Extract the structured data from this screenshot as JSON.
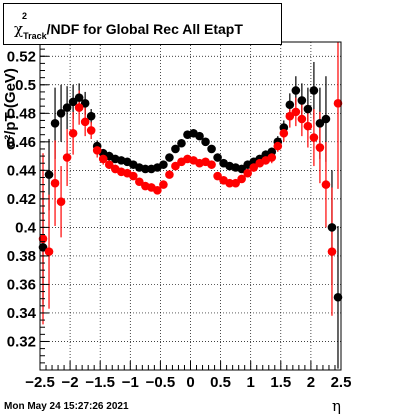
{
  "title": {
    "prefix": "χ",
    "superscript": "2",
    "subscript": "Track",
    "rest": "/NDF for Global Rec All EtapT"
  },
  "ylabel": "σ²/pT (GeV)",
  "xlabel": "η",
  "footer": "Mon May 24 15:27:26 2021",
  "colors": {
    "series_black": "#000000",
    "series_red": "#ff0000",
    "grid": "#000000"
  },
  "chart_data": {
    "type": "scatter",
    "title": "χ²Track/NDF for Global Rec All EtapT",
    "xlabel": "η",
    "ylabel": "σ²/pT (GeV)",
    "xlim": [
      -2.5,
      2.5
    ],
    "ylim": [
      0.3,
      0.53
    ],
    "grid": true,
    "x_ticks": [
      "−2.5",
      "−2",
      "−1.5",
      "−1",
      "−0.5",
      "0",
      "0.5",
      "1",
      "1.5",
      "2",
      "2.5"
    ],
    "y_ticks": [
      "0.32",
      "0.34",
      "0.36",
      "0.38",
      "0.4",
      "0.42",
      "0.44",
      "0.46",
      "0.48",
      "0.5",
      "0.52"
    ],
    "series": [
      {
        "color": "#000000",
        "points": [
          {
            "x": -2.45,
            "y": 0.386,
            "err": 0.04
          },
          {
            "x": -2.35,
            "y": 0.437,
            "err": 0.025
          },
          {
            "x": -2.25,
            "y": 0.473,
            "err": 0.025
          },
          {
            "x": -2.15,
            "y": 0.48,
            "err": 0.02
          },
          {
            "x": -2.05,
            "y": 0.484,
            "err": 0.015
          },
          {
            "x": -1.95,
            "y": 0.488,
            "err": 0.012
          },
          {
            "x": -1.85,
            "y": 0.491,
            "err": 0.01
          },
          {
            "x": -1.75,
            "y": 0.487,
            "err": 0.008
          },
          {
            "x": -1.65,
            "y": 0.478,
            "err": 0.005
          },
          {
            "x": -1.55,
            "y": 0.457,
            "err": 0.004
          },
          {
            "x": -1.45,
            "y": 0.452,
            "err": 0.003
          },
          {
            "x": -1.35,
            "y": 0.45,
            "err": 0.003
          },
          {
            "x": -1.25,
            "y": 0.448,
            "err": 0.002
          },
          {
            "x": -1.15,
            "y": 0.447,
            "err": 0.002
          },
          {
            "x": -1.05,
            "y": 0.446,
            "err": 0.002
          },
          {
            "x": -0.95,
            "y": 0.444,
            "err": 0.002
          },
          {
            "x": -0.85,
            "y": 0.442,
            "err": 0.002
          },
          {
            "x": -0.75,
            "y": 0.441,
            "err": 0.002
          },
          {
            "x": -0.65,
            "y": 0.441,
            "err": 0.002
          },
          {
            "x": -0.55,
            "y": 0.442,
            "err": 0.002
          },
          {
            "x": -0.45,
            "y": 0.444,
            "err": 0.002
          },
          {
            "x": -0.35,
            "y": 0.449,
            "err": 0.002
          },
          {
            "x": -0.25,
            "y": 0.455,
            "err": 0.002
          },
          {
            "x": -0.15,
            "y": 0.459,
            "err": 0.002
          },
          {
            "x": -0.05,
            "y": 0.465,
            "err": 0.002
          },
          {
            "x": 0.05,
            "y": 0.466,
            "err": 0.002
          },
          {
            "x": 0.15,
            "y": 0.464,
            "err": 0.002
          },
          {
            "x": 0.25,
            "y": 0.46,
            "err": 0.002
          },
          {
            "x": 0.35,
            "y": 0.455,
            "err": 0.002
          },
          {
            "x": 0.45,
            "y": 0.449,
            "err": 0.002
          },
          {
            "x": 0.55,
            "y": 0.445,
            "err": 0.002
          },
          {
            "x": 0.65,
            "y": 0.443,
            "err": 0.002
          },
          {
            "x": 0.75,
            "y": 0.442,
            "err": 0.002
          },
          {
            "x": 0.85,
            "y": 0.441,
            "err": 0.002
          },
          {
            "x": 0.95,
            "y": 0.444,
            "err": 0.002
          },
          {
            "x": 1.05,
            "y": 0.446,
            "err": 0.002
          },
          {
            "x": 1.15,
            "y": 0.448,
            "err": 0.002
          },
          {
            "x": 1.25,
            "y": 0.451,
            "err": 0.003
          },
          {
            "x": 1.35,
            "y": 0.453,
            "err": 0.003
          },
          {
            "x": 1.45,
            "y": 0.46,
            "err": 0.004
          },
          {
            "x": 1.55,
            "y": 0.47,
            "err": 0.005
          },
          {
            "x": 1.65,
            "y": 0.486,
            "err": 0.008
          },
          {
            "x": 1.75,
            "y": 0.496,
            "err": 0.01
          },
          {
            "x": 1.85,
            "y": 0.489,
            "err": 0.012
          },
          {
            "x": 1.95,
            "y": 0.483,
            "err": 0.015
          },
          {
            "x": 2.05,
            "y": 0.496,
            "err": 0.02
          },
          {
            "x": 2.15,
            "y": 0.473,
            "err": 0.025
          },
          {
            "x": 2.25,
            "y": 0.476,
            "err": 0.03
          },
          {
            "x": 2.35,
            "y": 0.4,
            "err": 0.04
          },
          {
            "x": 2.45,
            "y": 0.351,
            "err": 0.05
          }
        ]
      },
      {
        "color": "#ff0000",
        "points": [
          {
            "x": -2.45,
            "y": 0.392,
            "err": 0.06
          },
          {
            "x": -2.35,
            "y": 0.383,
            "err": 0.04
          },
          {
            "x": -2.25,
            "y": 0.431,
            "err": 0.03
          },
          {
            "x": -2.15,
            "y": 0.418,
            "err": 0.025
          },
          {
            "x": -2.05,
            "y": 0.449,
            "err": 0.02
          },
          {
            "x": -1.95,
            "y": 0.466,
            "err": 0.015
          },
          {
            "x": -1.85,
            "y": 0.484,
            "err": 0.012
          },
          {
            "x": -1.75,
            "y": 0.474,
            "err": 0.01
          },
          {
            "x": -1.65,
            "y": 0.468,
            "err": 0.006
          },
          {
            "x": -1.55,
            "y": 0.454,
            "err": 0.005
          },
          {
            "x": -1.45,
            "y": 0.448,
            "err": 0.004
          },
          {
            "x": -1.35,
            "y": 0.444,
            "err": 0.003
          },
          {
            "x": -1.25,
            "y": 0.441,
            "err": 0.003
          },
          {
            "x": -1.15,
            "y": 0.439,
            "err": 0.003
          },
          {
            "x": -1.05,
            "y": 0.438,
            "err": 0.003
          },
          {
            "x": -0.95,
            "y": 0.436,
            "err": 0.002
          },
          {
            "x": -0.85,
            "y": 0.432,
            "err": 0.002
          },
          {
            "x": -0.75,
            "y": 0.429,
            "err": 0.002
          },
          {
            "x": -0.65,
            "y": 0.428,
            "err": 0.002
          },
          {
            "x": -0.55,
            "y": 0.426,
            "err": 0.002
          },
          {
            "x": -0.45,
            "y": 0.43,
            "err": 0.002
          },
          {
            "x": -0.35,
            "y": 0.437,
            "err": 0.002
          },
          {
            "x": -0.25,
            "y": 0.443,
            "err": 0.002
          },
          {
            "x": -0.15,
            "y": 0.446,
            "err": 0.002
          },
          {
            "x": -0.05,
            "y": 0.448,
            "err": 0.002
          },
          {
            "x": 0.05,
            "y": 0.447,
            "err": 0.002
          },
          {
            "x": 0.15,
            "y": 0.445,
            "err": 0.002
          },
          {
            "x": 0.25,
            "y": 0.446,
            "err": 0.002
          },
          {
            "x": 0.35,
            "y": 0.444,
            "err": 0.002
          },
          {
            "x": 0.45,
            "y": 0.436,
            "err": 0.002
          },
          {
            "x": 0.55,
            "y": 0.433,
            "err": 0.002
          },
          {
            "x": 0.65,
            "y": 0.431,
            "err": 0.002
          },
          {
            "x": 0.75,
            "y": 0.431,
            "err": 0.002
          },
          {
            "x": 0.85,
            "y": 0.434,
            "err": 0.002
          },
          {
            "x": 0.95,
            "y": 0.438,
            "err": 0.002
          },
          {
            "x": 1.05,
            "y": 0.442,
            "err": 0.003
          },
          {
            "x": 1.15,
            "y": 0.445,
            "err": 0.003
          },
          {
            "x": 1.25,
            "y": 0.447,
            "err": 0.003
          },
          {
            "x": 1.35,
            "y": 0.449,
            "err": 0.004
          },
          {
            "x": 1.45,
            "y": 0.457,
            "err": 0.004
          },
          {
            "x": 1.55,
            "y": 0.466,
            "err": 0.006
          },
          {
            "x": 1.65,
            "y": 0.478,
            "err": 0.008
          },
          {
            "x": 1.75,
            "y": 0.481,
            "err": 0.01
          },
          {
            "x": 1.85,
            "y": 0.476,
            "err": 0.012
          },
          {
            "x": 1.95,
            "y": 0.471,
            "err": 0.015
          },
          {
            "x": 2.05,
            "y": 0.463,
            "err": 0.02
          },
          {
            "x": 2.15,
            "y": 0.456,
            "err": 0.025
          },
          {
            "x": 2.25,
            "y": 0.43,
            "err": 0.03
          },
          {
            "x": 2.35,
            "y": 0.383,
            "err": 0.045
          },
          {
            "x": 2.45,
            "y": 0.487,
            "err": 0.06
          }
        ]
      }
    ]
  }
}
